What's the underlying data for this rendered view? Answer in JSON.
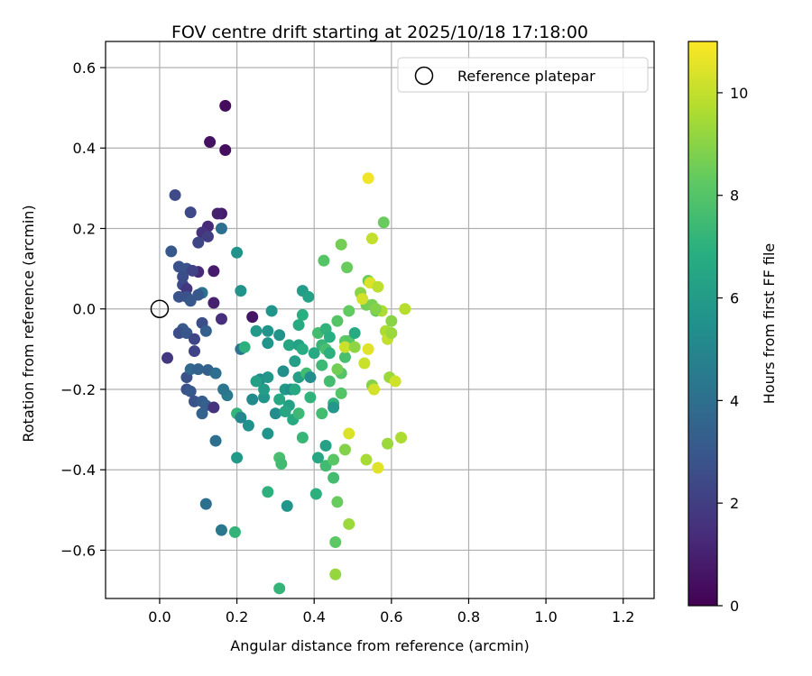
{
  "chart_data": {
    "type": "scatter",
    "title": "FOV centre drift starting at 2025/10/18 17:18:00",
    "xlabel": "Angular distance from reference (arcmin)",
    "ylabel": "Rotation from reference (arcmin)",
    "xlim": [
      -0.14,
      1.28
    ],
    "ylim": [
      -0.72,
      0.665
    ],
    "xticks": [
      0.0,
      0.2,
      0.4,
      0.6,
      0.8,
      1.0,
      1.2
    ],
    "xtick_labels": [
      "0.0",
      "0.2",
      "0.4",
      "0.6",
      "0.8",
      "1.0",
      "1.2"
    ],
    "yticks": [
      -0.6,
      -0.4,
      -0.2,
      0.0,
      0.2,
      0.4,
      0.6
    ],
    "ytick_labels": [
      "−0.6",
      "−0.4",
      "−0.2",
      "0.0",
      "0.2",
      "0.4",
      "0.6"
    ],
    "grid": true,
    "legend": {
      "position": "top-right",
      "entries": [
        "Reference platepar"
      ]
    },
    "reference_point": {
      "label": "Reference platepar",
      "x": 0.0,
      "y": 0.0
    },
    "colorbar": {
      "label": "Hours from first FF file",
      "range": [
        0,
        11
      ],
      "ticks": [
        0,
        2,
        4,
        6,
        8,
        10
      ],
      "tick_labels": [
        "0",
        "2",
        "4",
        "6",
        "8",
        "10"
      ],
      "colormap": "viridis"
    },
    "series": [
      {
        "name": "FOV centre drift",
        "columns": [
          "x",
          "y",
          "hours"
        ],
        "points": [
          [
            0.17,
            0.505,
            0.3
          ],
          [
            0.13,
            0.415,
            0.5
          ],
          [
            0.17,
            0.395,
            0.4
          ],
          [
            0.04,
            0.283,
            2.5
          ],
          [
            0.08,
            0.24,
            2.4
          ],
          [
            0.16,
            0.237,
            0.8
          ],
          [
            0.15,
            0.237,
            1.0
          ],
          [
            0.125,
            0.205,
            1.3
          ],
          [
            0.16,
            0.2,
            4.0
          ],
          [
            0.11,
            0.19,
            1.6
          ],
          [
            0.125,
            0.18,
            2.0
          ],
          [
            0.1,
            0.165,
            2.3
          ],
          [
            0.03,
            0.143,
            3.0
          ],
          [
            0.2,
            0.14,
            5.6
          ],
          [
            0.05,
            0.105,
            2.7
          ],
          [
            0.07,
            0.1,
            2.8
          ],
          [
            0.14,
            0.094,
            0.8
          ],
          [
            0.1,
            0.092,
            1.3
          ],
          [
            0.085,
            0.095,
            2.2
          ],
          [
            0.06,
            0.08,
            2.6
          ],
          [
            0.06,
            0.06,
            2.5
          ],
          [
            0.07,
            0.05,
            1.8
          ],
          [
            0.11,
            0.04,
            4.1
          ],
          [
            0.1,
            0.035,
            3.0
          ],
          [
            0.05,
            0.03,
            2.8
          ],
          [
            0.07,
            0.03,
            2.7
          ],
          [
            0.08,
            0.02,
            3.0
          ],
          [
            0.14,
            0.015,
            1.0
          ],
          [
            0.16,
            -0.025,
            1.5
          ],
          [
            0.11,
            -0.035,
            2.6
          ],
          [
            0.06,
            -0.05,
            3.2
          ],
          [
            0.05,
            -0.06,
            2.6
          ],
          [
            0.07,
            -0.06,
            3.0
          ],
          [
            0.12,
            -0.055,
            3.3
          ],
          [
            0.09,
            -0.075,
            2.3
          ],
          [
            0.09,
            -0.105,
            2.2
          ],
          [
            0.02,
            -0.122,
            1.8
          ],
          [
            0.07,
            -0.17,
            2.7
          ],
          [
            0.08,
            -0.15,
            3.7
          ],
          [
            0.1,
            -0.15,
            3.5
          ],
          [
            0.125,
            -0.152,
            3.4
          ],
          [
            0.145,
            -0.16,
            4.0
          ],
          [
            0.07,
            -0.2,
            2.7
          ],
          [
            0.08,
            -0.205,
            3.0
          ],
          [
            0.09,
            -0.23,
            2.8
          ],
          [
            0.11,
            -0.23,
            3.2
          ],
          [
            0.12,
            -0.24,
            3.3
          ],
          [
            0.14,
            -0.245,
            1.6
          ],
          [
            0.11,
            -0.26,
            3.5
          ],
          [
            0.145,
            -0.328,
            4.0
          ],
          [
            0.12,
            -0.485,
            4.0
          ],
          [
            0.16,
            -0.55,
            4.4
          ],
          [
            0.195,
            -0.555,
            7.2
          ],
          [
            0.21,
            -0.1,
            4.2
          ],
          [
            0.24,
            -0.02,
            0.6
          ],
          [
            0.21,
            0.045,
            5.6
          ],
          [
            0.25,
            -0.055,
            5.9
          ],
          [
            0.22,
            -0.095,
            7.0
          ],
          [
            0.28,
            -0.055,
            5.7
          ],
          [
            0.29,
            -0.005,
            5.7
          ],
          [
            0.28,
            -0.085,
            5.7
          ],
          [
            0.31,
            -0.065,
            5.6
          ],
          [
            0.26,
            -0.175,
            5.3
          ],
          [
            0.28,
            -0.17,
            5.8
          ],
          [
            0.25,
            -0.18,
            6.2
          ],
          [
            0.32,
            -0.155,
            5.4
          ],
          [
            0.27,
            -0.22,
            5.7
          ],
          [
            0.24,
            -0.225,
            5.2
          ],
          [
            0.27,
            -0.2,
            6.0
          ],
          [
            0.175,
            -0.215,
            4.5
          ],
          [
            0.165,
            -0.2,
            4.3
          ],
          [
            0.2,
            -0.26,
            7.2
          ],
          [
            0.21,
            -0.27,
            5.0
          ],
          [
            0.23,
            -0.29,
            5.5
          ],
          [
            0.3,
            -0.26,
            5.3
          ],
          [
            0.28,
            -0.31,
            5.7
          ],
          [
            0.325,
            -0.2,
            5.9
          ],
          [
            0.34,
            -0.2,
            5.4
          ],
          [
            0.335,
            -0.24,
            6.2
          ],
          [
            0.31,
            -0.225,
            6.6
          ],
          [
            0.345,
            -0.275,
            6.7
          ],
          [
            0.325,
            -0.255,
            6.5
          ],
          [
            0.36,
            -0.26,
            7.4
          ],
          [
            0.37,
            -0.32,
            7.3
          ],
          [
            0.31,
            -0.37,
            7.7
          ],
          [
            0.315,
            -0.385,
            7.5
          ],
          [
            0.2,
            -0.37,
            5.9
          ],
          [
            0.28,
            -0.455,
            7.0
          ],
          [
            0.33,
            -0.49,
            5.7
          ],
          [
            0.31,
            -0.695,
            7.2
          ],
          [
            0.335,
            -0.09,
            6.5
          ],
          [
            0.36,
            -0.04,
            6.7
          ],
          [
            0.37,
            -0.015,
            6.9
          ],
          [
            0.37,
            0.045,
            6.0
          ],
          [
            0.385,
            0.03,
            6.3
          ],
          [
            0.36,
            -0.09,
            6.3
          ],
          [
            0.37,
            -0.1,
            6.8
          ],
          [
            0.35,
            -0.13,
            6.1
          ],
          [
            0.36,
            -0.17,
            6.2
          ],
          [
            0.38,
            -0.16,
            7.5
          ],
          [
            0.39,
            -0.17,
            5.4
          ],
          [
            0.39,
            -0.22,
            7.1
          ],
          [
            0.35,
            -0.2,
            6.6
          ],
          [
            0.4,
            -0.11,
            6.7
          ],
          [
            0.41,
            -0.06,
            7.6
          ],
          [
            0.43,
            -0.05,
            7.1
          ],
          [
            0.42,
            -0.09,
            7.3
          ],
          [
            0.43,
            -0.1,
            7.7
          ],
          [
            0.44,
            -0.11,
            7.0
          ],
          [
            0.44,
            -0.07,
            6.9
          ],
          [
            0.42,
            -0.14,
            7.4
          ],
          [
            0.44,
            -0.18,
            7.6
          ],
          [
            0.42,
            -0.26,
            7.6
          ],
          [
            0.45,
            -0.235,
            7.1
          ],
          [
            0.45,
            -0.245,
            5.8
          ],
          [
            0.43,
            -0.34,
            6.3
          ],
          [
            0.41,
            -0.37,
            6.5
          ],
          [
            0.43,
            -0.39,
            7.5
          ],
          [
            0.45,
            -0.375,
            8.1
          ],
          [
            0.45,
            -0.42,
            7.6
          ],
          [
            0.405,
            -0.46,
            7.0
          ],
          [
            0.46,
            -0.48,
            8.4
          ],
          [
            0.455,
            -0.58,
            8.2
          ],
          [
            0.49,
            -0.535,
            9.3
          ],
          [
            0.455,
            -0.66,
            9.2
          ],
          [
            0.425,
            0.12,
            8.0
          ],
          [
            0.47,
            0.16,
            8.6
          ],
          [
            0.485,
            0.103,
            8.4
          ],
          [
            0.46,
            -0.03,
            8.0
          ],
          [
            0.47,
            -0.16,
            8.0
          ],
          [
            0.48,
            -0.08,
            8.2
          ],
          [
            0.48,
            -0.12,
            7.7
          ],
          [
            0.49,
            -0.08,
            8.1
          ],
          [
            0.47,
            -0.21,
            8.0
          ],
          [
            0.46,
            -0.15,
            8.6
          ],
          [
            0.48,
            -0.35,
            8.9
          ],
          [
            0.49,
            -0.31,
            10.4
          ],
          [
            0.48,
            -0.095,
            10.1
          ],
          [
            0.49,
            -0.005,
            8.3
          ],
          [
            0.505,
            -0.095,
            9.1
          ],
          [
            0.52,
            0.04,
            9.0
          ],
          [
            0.535,
            0.01,
            8.6
          ],
          [
            0.525,
            0.025,
            10.3
          ],
          [
            0.54,
            0.07,
            8.5
          ],
          [
            0.545,
            0.065,
            10.4
          ],
          [
            0.55,
            0.01,
            8.7
          ],
          [
            0.565,
            0.055,
            9.9
          ],
          [
            0.56,
            -0.005,
            8.4
          ],
          [
            0.575,
            -0.005,
            9.6
          ],
          [
            0.505,
            -0.06,
            6.7
          ],
          [
            0.53,
            -0.135,
            10.1
          ],
          [
            0.54,
            -0.1,
            10.5
          ],
          [
            0.55,
            -0.19,
            8.9
          ],
          [
            0.555,
            -0.2,
            10.3
          ],
          [
            0.535,
            -0.375,
            9.5
          ],
          [
            0.565,
            -0.395,
            10.5
          ],
          [
            0.54,
            0.325,
            10.8
          ],
          [
            0.55,
            0.175,
            10.0
          ],
          [
            0.58,
            0.215,
            8.4
          ],
          [
            0.585,
            -0.055,
            9.6
          ],
          [
            0.59,
            -0.075,
            10.0
          ],
          [
            0.6,
            -0.06,
            9.3
          ],
          [
            0.6,
            -0.03,
            9.0
          ],
          [
            0.595,
            -0.17,
            9.3
          ],
          [
            0.61,
            -0.18,
            10.2
          ],
          [
            0.635,
            0.0,
            9.8
          ],
          [
            0.59,
            -0.335,
            9.3
          ],
          [
            0.625,
            -0.32,
            9.6
          ],
          [
            0.56,
            -0.0,
            8.9
          ]
        ]
      }
    ]
  }
}
